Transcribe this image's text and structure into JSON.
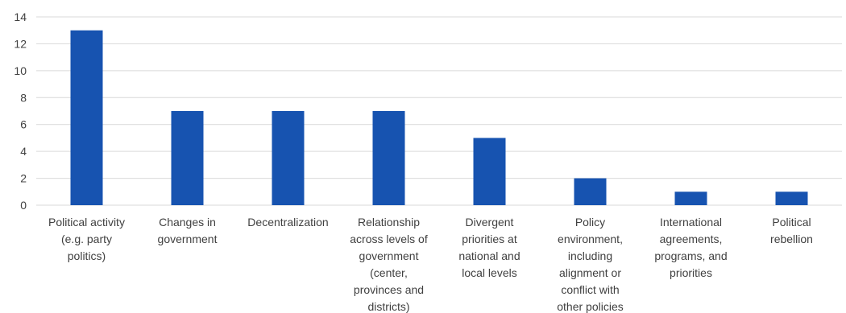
{
  "chart_data": {
    "type": "bar",
    "title": "",
    "xlabel": "",
    "ylabel": "",
    "ylim": [
      0,
      14
    ],
    "yticks": [
      0,
      2,
      4,
      6,
      8,
      10,
      12,
      14
    ],
    "grid": true,
    "legend": "none",
    "bar_color": "#1753B0",
    "grid_color": "#D9D9D9",
    "categories": [
      "Political activity (e.g. party politics)",
      "Changes in government",
      "Decentralization",
      "Relationship across levels of government (center, provinces and districts)",
      "Divergent priorities at national and local levels",
      "Policy environment, including alignment or conflict with other policies",
      "International agreements, programs, and priorities",
      "Political rebellion"
    ],
    "category_label_lines": [
      [
        "Political activity",
        "(e.g. party",
        "politics)"
      ],
      [
        "Changes in",
        "government"
      ],
      [
        "Decentralization"
      ],
      [
        "Relationship",
        "across levels of",
        "government",
        "(center,",
        "provinces and",
        "districts)"
      ],
      [
        "Divergent",
        "priorities at",
        "national and",
        "local levels"
      ],
      [
        "Policy",
        "environment,",
        "including",
        "alignment or",
        "conflict with",
        "other policies"
      ],
      [
        "International",
        "agreements,",
        "programs, and",
        "priorities"
      ],
      [
        "Political",
        "rebellion"
      ]
    ],
    "values": [
      13,
      7,
      7,
      7,
      5,
      2,
      1,
      1
    ]
  }
}
